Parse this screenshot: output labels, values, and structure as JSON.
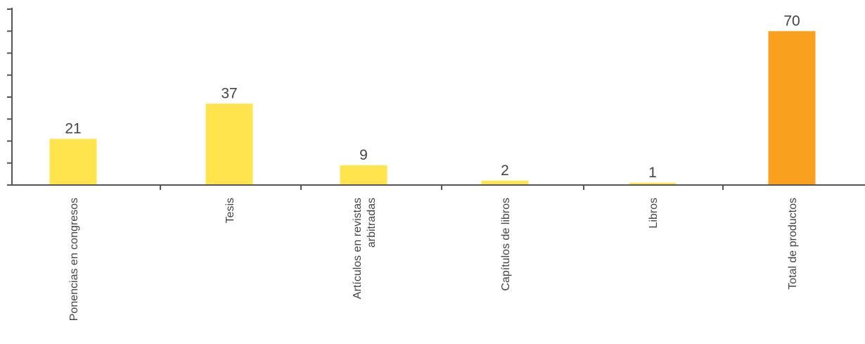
{
  "chart_data": {
    "type": "bar",
    "title": "",
    "xlabel": "",
    "ylabel": "",
    "categories": [
      [
        "Ponencias en congresos"
      ],
      [
        "Tesis"
      ],
      [
        "Artículos en revistas",
        "arbitradas"
      ],
      [
        "Capítulos de libros"
      ],
      [
        "Libros"
      ],
      [
        "Total de productos"
      ]
    ],
    "values": [
      21,
      37,
      9,
      2,
      1,
      70
    ],
    "data_labels": [
      "21",
      "37",
      "9",
      "2",
      "1",
      "70"
    ],
    "colors": [
      "#FFE44D",
      "#FFE44D",
      "#FFE44D",
      "#FFE44D",
      "#FFE44D",
      "#F9A11E"
    ],
    "ylim": [
      0,
      80
    ],
    "y_ticks": [
      0,
      10,
      20,
      30,
      40,
      50,
      60,
      70,
      80
    ],
    "y_tick_labels_shown": false,
    "grid": false,
    "legend": "none",
    "axis_color": "#555555",
    "label_color": "#444444"
  }
}
